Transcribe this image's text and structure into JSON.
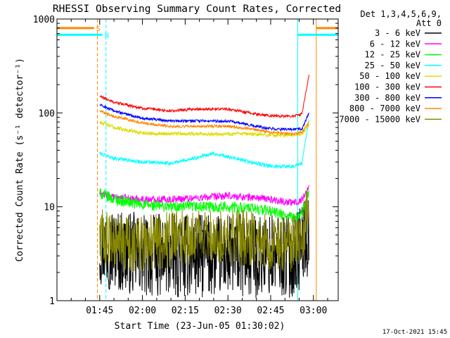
{
  "chart_data": {
    "type": "line",
    "title": "RHESSI Observing Summary Count Rates, Corrected",
    "ylabel": "Corrected Count Rate (s⁻¹ detector⁻¹)",
    "xlabel": "Start Time (23-Jun-05 01:30:02)",
    "y_scale": "log",
    "ylim": [
      1,
      1000
    ],
    "xlim": [
      "01:30",
      "03:08"
    ],
    "x_ticks": [
      "01:45",
      "02:00",
      "02:15",
      "02:30",
      "02:45",
      "03:00"
    ],
    "x_tick_minutes": [
      105,
      120,
      135,
      150,
      165,
      180
    ],
    "y_ticks": [
      {
        "label": "1",
        "value": 1
      },
      {
        "label": "10",
        "value": 10
      },
      {
        "label": "100",
        "value": 100
      },
      {
        "label": "1000",
        "value": 1000
      }
    ],
    "legend": {
      "placement": "right",
      "header": [
        "Det 1,3,4,5,6,9,",
        "Att 0"
      ]
    },
    "series": [
      {
        "name": "3 - 6 keV",
        "color": "#000000",
        "noise": 0.45,
        "x": [
          105,
          110,
          120,
          130,
          140,
          150,
          160,
          165,
          173,
          176,
          178.5
        ],
        "y": [
          4,
          3.5,
          3,
          3,
          3,
          3,
          3,
          3,
          3,
          4,
          5
        ]
      },
      {
        "name": "6 - 12 keV",
        "color": "#ff00ff",
        "noise": 0.04,
        "x": [
          105,
          110,
          120,
          130,
          140,
          150,
          160,
          165,
          173,
          176,
          178.5
        ],
        "y": [
          14,
          12.5,
          12,
          12,
          12.5,
          13,
          12.5,
          12,
          11,
          12,
          16
        ]
      },
      {
        "name": "12 - 25 keV",
        "color": "#00ff00",
        "noise": 0.06,
        "x": [
          105,
          110,
          120,
          130,
          140,
          150,
          160,
          165,
          173,
          176,
          178.5
        ],
        "y": [
          14,
          12,
          10.5,
          10,
          10,
          10,
          9.5,
          9,
          7.5,
          8.5,
          15
        ]
      },
      {
        "name": "25 - 50 keV",
        "color": "#00ffff",
        "noise": 0.02,
        "x": [
          105,
          110,
          120,
          130,
          140,
          145,
          150,
          160,
          165,
          173,
          176,
          178.5
        ],
        "y": [
          37,
          33,
          30,
          29,
          34,
          37,
          34,
          29,
          27,
          27,
          29,
          90
        ]
      },
      {
        "name": "50 - 100 keV",
        "color": "#dddd00",
        "noise": 0.02,
        "x": [
          105,
          110,
          120,
          130,
          140,
          150,
          160,
          165,
          173,
          176,
          178.5
        ],
        "y": [
          80,
          70,
          61,
          60,
          60,
          60,
          59,
          58,
          58,
          60,
          75
        ]
      },
      {
        "name": "100 - 300 keV",
        "color": "#ff0000",
        "noise": 0.015,
        "x": [
          105,
          110,
          120,
          130,
          140,
          150,
          160,
          165,
          173,
          176,
          178.5
        ],
        "y": [
          150,
          130,
          112,
          105,
          110,
          110,
          97,
          93,
          92,
          98,
          260
        ]
      },
      {
        "name": "300 - 800 keV",
        "color": "#0000ff",
        "noise": 0.015,
        "x": [
          105,
          110,
          120,
          130,
          140,
          150,
          160,
          165,
          173,
          176,
          178.5
        ],
        "y": [
          122,
          105,
          88,
          82,
          82,
          82,
          72,
          68,
          66,
          68,
          100
        ]
      },
      {
        "name": "800 - 7000 keV",
        "color": "#ff8800",
        "noise": 0.015,
        "x": [
          105,
          110,
          120,
          130,
          140,
          150,
          160,
          165,
          173,
          176,
          178.5
        ],
        "y": [
          106,
          92,
          78,
          72,
          72,
          72,
          66,
          62,
          60,
          62,
          80
        ]
      },
      {
        "name": "7000 - 15000 keV",
        "color": "#888800",
        "noise": 0.3,
        "x": [
          105,
          110,
          120,
          130,
          140,
          150,
          160,
          165,
          173,
          176,
          178.5
        ],
        "y": [
          5,
          4,
          4,
          4.5,
          5,
          5,
          4.5,
          4,
          4,
          5,
          10
        ]
      }
    ],
    "flags": [
      {
        "label": "S",
        "color": "#ff8800",
        "line": "solid",
        "level": 800,
        "x_start": 90,
        "x_end": 103
      },
      {
        "label": "N",
        "color": "#00ffff",
        "line": "solid",
        "level": 680,
        "x_start": 90,
        "x_end": 106
      },
      {
        "label": "",
        "color": "#00ffff",
        "line": "solid",
        "level": 680,
        "x_start": 174.5,
        "x_end": 188.7
      },
      {
        "label": "",
        "color": "#ff8800",
        "line": "solid",
        "level": 800,
        "x_start": 181,
        "x_end": 188.7
      }
    ],
    "markers": [
      {
        "x": 90,
        "color": "#00ffff",
        "dash": false
      },
      {
        "x": 104.2,
        "color": "#ff8800",
        "dash": true
      },
      {
        "x": 107.2,
        "color": "#00ffff",
        "dash": true
      },
      {
        "x": 174.5,
        "color": "#00ffff",
        "dash": false
      },
      {
        "x": 181,
        "color": "#ff8800",
        "dash": false
      },
      {
        "x": 188.7,
        "color": "#00ffff",
        "dash": true
      }
    ],
    "timestamp": "17-Oct-2021 15:45"
  }
}
